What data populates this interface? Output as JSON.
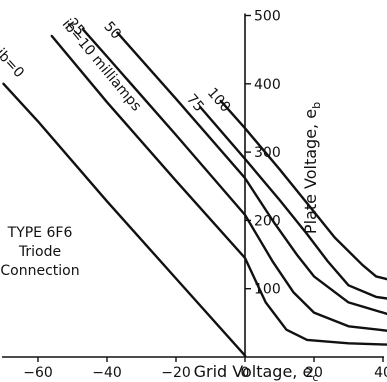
{
  "chart_data": {
    "type": "line",
    "xlabel": "Grid Voltage, ec",
    "ylabel": "Plate Voltage, eb",
    "xlim": [
      -75,
      42
    ],
    "ylim": [
      0,
      500
    ],
    "x_ticks": [
      "-60",
      "-40",
      "-20",
      "0",
      "20",
      "40"
    ],
    "y_ticks": [
      "100",
      "200",
      "300",
      "400",
      "500"
    ],
    "legend": "labels placed along curves",
    "grid": false,
    "annotations": [
      "TYPE 6F6",
      "Triode",
      "Connection"
    ],
    "series": [
      {
        "name": "ib=0",
        "label_text": "ib=0",
        "points": [
          [
            -70,
            400
          ],
          [
            -60,
            345
          ],
          [
            -40,
            228
          ],
          [
            -20,
            115
          ],
          [
            0,
            2
          ]
        ]
      },
      {
        "name": "10 milliamps",
        "label_text": "ib=10 milliamps",
        "points": [
          [
            -56,
            470
          ],
          [
            -40,
            373
          ],
          [
            -20,
            258
          ],
          [
            0,
            145
          ],
          [
            6,
            80
          ],
          [
            12,
            40
          ],
          [
            18,
            25
          ],
          [
            30,
            20
          ],
          [
            42,
            18
          ]
        ]
      },
      {
        "name": "25",
        "label_text": "25",
        "points": [
          [
            -47,
            480
          ],
          [
            -40,
            440
          ],
          [
            -20,
            325
          ],
          [
            0,
            208
          ],
          [
            8,
            140
          ],
          [
            14,
            95
          ],
          [
            20,
            65
          ],
          [
            30,
            45
          ],
          [
            42,
            38
          ]
        ]
      },
      {
        "name": "50",
        "label_text": "50",
        "points": [
          [
            -37,
            475
          ],
          [
            -20,
            378
          ],
          [
            0,
            262
          ],
          [
            8,
            200
          ],
          [
            15,
            150
          ],
          [
            20,
            118
          ],
          [
            30,
            80
          ],
          [
            42,
            62
          ]
        ]
      },
      {
        "name": "75",
        "label_text": "75",
        "points": [
          [
            -13,
            366
          ],
          [
            0,
            290
          ],
          [
            10,
            230
          ],
          [
            18,
            180
          ],
          [
            24,
            140
          ],
          [
            30,
            105
          ],
          [
            38,
            88
          ],
          [
            42,
            85
          ]
        ]
      },
      {
        "name": "100",
        "label_text": "100",
        "points": [
          [
            -7,
            375
          ],
          [
            0,
            335
          ],
          [
            10,
            275
          ],
          [
            18,
            225
          ],
          [
            26,
            175
          ],
          [
            34,
            135
          ],
          [
            38,
            118
          ],
          [
            42,
            113
          ]
        ]
      }
    ]
  }
}
